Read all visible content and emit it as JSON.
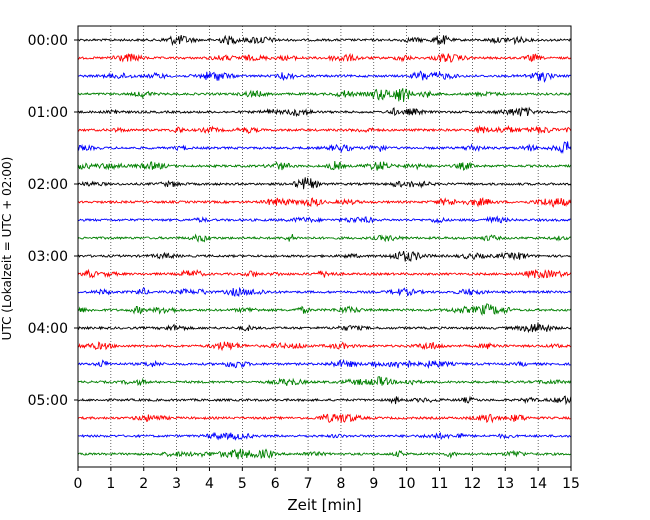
{
  "chart_data": {
    "type": "line",
    "title": "",
    "xlabel": "Zeit  [min]",
    "ylabel": "UTC (Lokalzeit = UTC + 02:00)",
    "xlim": [
      0,
      15
    ],
    "xticks": [
      0,
      1,
      2,
      3,
      4,
      5,
      6,
      7,
      8,
      9,
      10,
      11,
      12,
      13,
      14,
      15
    ],
    "y_tick_labels": [
      "00:00",
      "01:00",
      "02:00",
      "03:00",
      "04:00",
      "05:00"
    ],
    "grid": "vertical dotted lines at each minute",
    "color_cycle": [
      "#000000",
      "#ff0000",
      "#0000ff",
      "#008000"
    ],
    "trace_interval_minutes": 15,
    "trace_start_times": [
      "00:00",
      "00:15",
      "00:30",
      "00:45",
      "01:00",
      "01:15",
      "01:30",
      "01:45",
      "02:00",
      "02:15",
      "02:30",
      "02:45",
      "03:00",
      "03:15",
      "03:30",
      "03:45",
      "04:00",
      "04:15",
      "04:30",
      "04:45",
      "05:00",
      "05:15",
      "05:30",
      "05:45"
    ],
    "series_description": "Seismogram helicorder traces, each a noisy line around its baseline with small amplitude bursts"
  }
}
